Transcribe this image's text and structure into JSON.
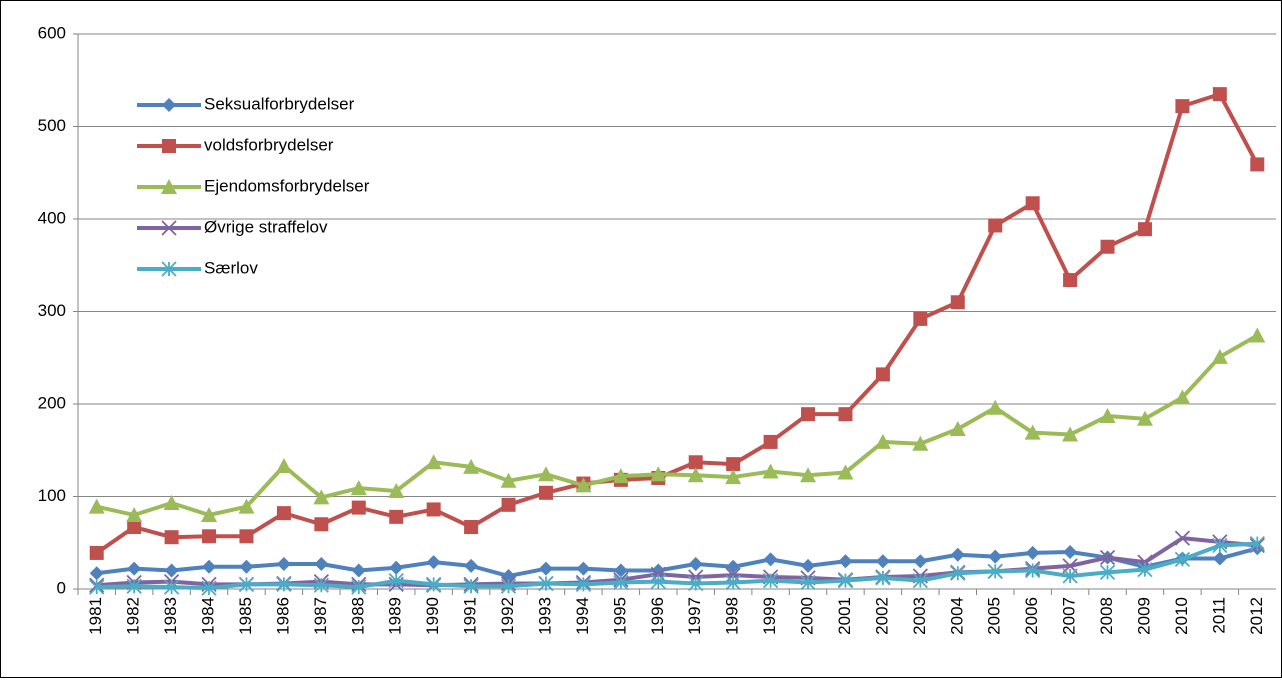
{
  "chart_data": {
    "type": "line",
    "categories": [
      "1981",
      "1982",
      "1983",
      "1984",
      "1985",
      "1986",
      "1987",
      "1988",
      "1989",
      "1990",
      "1991",
      "1992",
      "1993",
      "1994",
      "1995",
      "1996",
      "1997",
      "1998",
      "1999",
      "2000",
      "2001",
      "2002",
      "2003",
      "2004",
      "2005",
      "2006",
      "2007",
      "2008",
      "2009",
      "2010",
      "2011",
      "2012"
    ],
    "series": [
      {
        "name": "Seksualforbrydelser",
        "color": "#4f81bd",
        "marker": "diamond",
        "values": [
          17,
          22,
          20,
          24,
          24,
          27,
          27,
          20,
          23,
          29,
          25,
          14,
          22,
          22,
          20,
          20,
          27,
          24,
          32,
          25,
          30,
          30,
          30,
          37,
          35,
          39,
          40,
          34,
          24,
          33,
          33,
          44
        ]
      },
      {
        "name": "voldsforbrydelser",
        "color": "#c0504d",
        "marker": "square",
        "values": [
          39,
          67,
          56,
          57,
          57,
          82,
          70,
          88,
          78,
          86,
          67,
          91,
          104,
          114,
          118,
          120,
          137,
          135,
          159,
          189,
          189,
          232,
          292,
          310,
          393,
          417,
          334,
          370,
          389,
          522,
          535,
          459
        ]
      },
      {
        "name": "Ejendomsforbrydelser",
        "color": "#9bbb59",
        "marker": "triangle",
        "values": [
          89,
          80,
          93,
          80,
          89,
          133,
          99,
          109,
          106,
          137,
          132,
          117,
          124,
          112,
          122,
          124,
          123,
          121,
          127,
          123,
          126,
          159,
          157,
          173,
          196,
          169,
          167,
          187,
          184,
          207,
          251,
          274
        ]
      },
      {
        "name": "Øvrige straffelov",
        "color": "#8064a2",
        "marker": "x",
        "values": [
          4,
          7,
          8,
          5,
          5,
          6,
          8,
          5,
          5,
          4,
          5,
          6,
          6,
          7,
          10,
          16,
          13,
          15,
          13,
          12,
          10,
          13,
          14,
          18,
          19,
          22,
          25,
          34,
          29,
          55,
          51,
          47
        ]
      },
      {
        "name": " Særlov",
        "color": "#4bacc6",
        "marker": "star",
        "values": [
          2,
          3,
          2,
          1,
          5,
          5,
          4,
          2,
          9,
          5,
          3,
          3,
          6,
          5,
          7,
          8,
          6,
          7,
          9,
          7,
          9,
          12,
          9,
          17,
          19,
          20,
          14,
          18,
          21,
          32,
          47,
          49
        ]
      }
    ],
    "ylim": [
      0,
      600
    ],
    "yticks": [
      0,
      100,
      200,
      300,
      400,
      500,
      600
    ],
    "grid": true,
    "legend": "upper left"
  }
}
